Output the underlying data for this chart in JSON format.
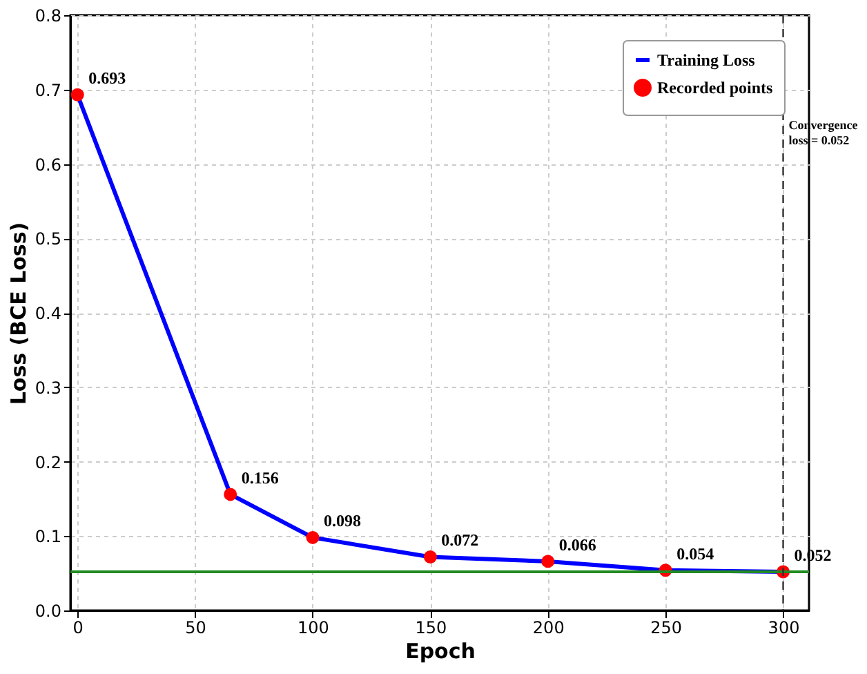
{
  "chart_data": {
    "type": "line",
    "xlabel": "Epoch",
    "ylabel": "Loss (BCE Loss)",
    "xlim": [
      -3,
      311
    ],
    "ylim": [
      0,
      0.8
    ],
    "xticks": [
      0,
      50,
      100,
      150,
      200,
      250,
      300
    ],
    "yticks": [
      {
        "value": 0,
        "label": "0.0"
      },
      0.1,
      0.2,
      0.3,
      0.4,
      0.5,
      0.6,
      0.7,
      0.8
    ],
    "series": [
      {
        "name": "Training Loss",
        "color": "#0000ff",
        "x": [
          0,
          65,
          100,
          150,
          200,
          250,
          300
        ],
        "values": [
          0.693,
          0.156,
          0.098,
          0.072,
          0.066,
          0.054,
          0.052
        ],
        "marker": "none"
      },
      {
        "name": "Recorded points",
        "type": "scatter",
        "color": "#ff0000",
        "x": [
          0,
          65,
          100,
          150,
          200,
          250,
          300
        ],
        "values": [
          0.693,
          0.156,
          0.098,
          0.072,
          0.066,
          0.054,
          0.052
        ],
        "marker": "circle",
        "value_labels": [
          "0.693",
          "0.156",
          "0.098",
          "0.072",
          "0.066",
          "0.054",
          "0.052"
        ]
      }
    ],
    "ref_lines": [
      {
        "axis": "y",
        "value": 0.052,
        "color": "#228b22",
        "line_style": "solid"
      },
      {
        "axis": "x",
        "value": 300,
        "color": "#333333",
        "line_style": "dashed"
      }
    ],
    "annotations": [
      {
        "text": "Convergence\nloss = 0.052",
        "x": 300,
        "y": 0.66
      }
    ],
    "grid": true,
    "legend": "top right"
  }
}
